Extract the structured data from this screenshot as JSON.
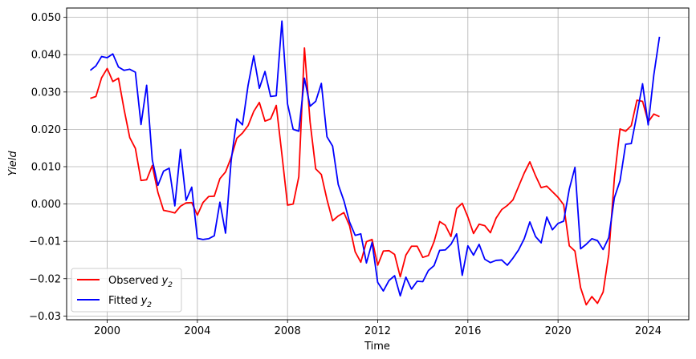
{
  "chart_data": {
    "type": "line",
    "xlabel": "Time",
    "ylabel": "Yield",
    "xlim": [
      1998.2,
      2025.8
    ],
    "ylim": [
      -0.031,
      0.0525
    ],
    "grid": true,
    "legend_position": "lower-left",
    "xticks": [
      2000,
      2004,
      2008,
      2012,
      2016,
      2020,
      2024
    ],
    "xtick_labels": [
      "2000",
      "2004",
      "2008",
      "2012",
      "2016",
      "2020",
      "2024"
    ],
    "yticks": [
      -0.03,
      -0.02,
      -0.01,
      0.0,
      0.01,
      0.02,
      0.03,
      0.04,
      0.05
    ],
    "ytick_labels": [
      "−0.03",
      "−0.02",
      "−0.01",
      "0.000",
      "0.010",
      "0.020",
      "0.030",
      "0.040",
      "0.050"
    ],
    "series": [
      {
        "name": "Observed y2",
        "legend_label": "Observed",
        "legend_subscript": "2",
        "color": "#ff0000",
        "x": [
          1999.25,
          1999.5,
          1999.75,
          2000.0,
          2000.25,
          2000.5,
          2000.75,
          2001.0,
          2001.25,
          2001.5,
          2001.75,
          2002.0,
          2002.25,
          2002.5,
          2002.75,
          2003.0,
          2003.25,
          2003.5,
          2003.75,
          2004.0,
          2004.25,
          2004.5,
          2004.75,
          2005.0,
          2005.25,
          2005.5,
          2005.75,
          2006.0,
          2006.25,
          2006.5,
          2006.75,
          2007.0,
          2007.25,
          2007.5,
          2007.75,
          2008.0,
          2008.25,
          2008.5,
          2008.75,
          2009.0,
          2009.25,
          2009.5,
          2009.75,
          2010.0,
          2010.25,
          2010.5,
          2010.75,
          2011.0,
          2011.25,
          2011.5,
          2011.75,
          2012.0,
          2012.25,
          2012.5,
          2012.75,
          2013.0,
          2013.25,
          2013.5,
          2013.75,
          2014.0,
          2014.25,
          2014.5,
          2014.75,
          2015.0,
          2015.25,
          2015.5,
          2015.75,
          2016.0,
          2016.25,
          2016.5,
          2016.75,
          2017.0,
          2017.25,
          2017.5,
          2017.75,
          2018.0,
          2018.25,
          2018.5,
          2018.75,
          2019.0,
          2019.25,
          2019.5,
          2019.75,
          2020.0,
          2020.25,
          2020.5,
          2020.75,
          2021.0,
          2021.25,
          2021.5,
          2021.75,
          2022.0,
          2022.25,
          2022.5,
          2022.75,
          2023.0,
          2023.25,
          2023.5,
          2023.75,
          2024.0,
          2024.25,
          2024.5
        ],
        "y": [
          0.0283,
          0.0288,
          0.0338,
          0.0363,
          0.0328,
          0.0337,
          0.0253,
          0.0178,
          0.0149,
          0.0063,
          0.0065,
          0.0103,
          0.0031,
          -0.0017,
          -0.002,
          -0.0024,
          -0.0006,
          0.0003,
          0.0004,
          -0.003,
          0.0004,
          0.002,
          0.0021,
          0.0068,
          0.0086,
          0.0125,
          0.0176,
          0.019,
          0.021,
          0.0248,
          0.0272,
          0.0222,
          0.0228,
          0.0264,
          0.0133,
          -0.0003,
          0.0,
          0.0073,
          0.0418,
          0.022,
          0.0094,
          0.0079,
          0.0012,
          -0.0045,
          -0.0032,
          -0.0023,
          -0.0058,
          -0.0128,
          -0.0156,
          -0.0101,
          -0.0095,
          -0.0164,
          -0.0126,
          -0.0125,
          -0.0135,
          -0.0195,
          -0.0137,
          -0.0113,
          -0.0113,
          -0.0143,
          -0.0138,
          -0.0101,
          -0.0047,
          -0.0057,
          -0.0087,
          -0.0012,
          0.0002,
          -0.0035,
          -0.0079,
          -0.0054,
          -0.0058,
          -0.0077,
          -0.0038,
          -0.0015,
          -0.0004,
          0.0011,
          0.0047,
          0.0083,
          0.0113,
          0.0076,
          0.0044,
          0.0048,
          0.0033,
          0.0018,
          -0.0002,
          -0.0112,
          -0.0126,
          -0.0224,
          -0.027,
          -0.0248,
          -0.0266,
          -0.0236,
          -0.0135,
          0.007,
          0.0201,
          0.0195,
          0.021,
          0.0278,
          0.0275,
          0.022,
          0.0241,
          0.0234
        ]
      },
      {
        "name": "Fitted y2",
        "legend_label": "Fitted",
        "legend_subscript": "2",
        "color": "#0000ff",
        "x": [
          1999.25,
          1999.5,
          1999.75,
          2000.0,
          2000.25,
          2000.5,
          2000.75,
          2001.0,
          2001.25,
          2001.5,
          2001.75,
          2002.0,
          2002.25,
          2002.5,
          2002.75,
          2003.0,
          2003.25,
          2003.5,
          2003.75,
          2004.0,
          2004.25,
          2004.5,
          2004.75,
          2005.0,
          2005.25,
          2005.5,
          2005.75,
          2006.0,
          2006.25,
          2006.5,
          2006.75,
          2007.0,
          2007.25,
          2007.5,
          2007.75,
          2008.0,
          2008.25,
          2008.5,
          2008.75,
          2009.0,
          2009.25,
          2009.5,
          2009.75,
          2010.0,
          2010.25,
          2010.5,
          2010.75,
          2011.0,
          2011.25,
          2011.5,
          2011.75,
          2012.0,
          2012.25,
          2012.5,
          2012.75,
          2013.0,
          2013.25,
          2013.5,
          2013.75,
          2014.0,
          2014.25,
          2014.5,
          2014.75,
          2015.0,
          2015.25,
          2015.5,
          2015.75,
          2016.0,
          2016.25,
          2016.5,
          2016.75,
          2017.0,
          2017.25,
          2017.5,
          2017.75,
          2018.0,
          2018.25,
          2018.5,
          2018.75,
          2019.0,
          2019.25,
          2019.5,
          2019.75,
          2020.0,
          2020.25,
          2020.5,
          2020.75,
          2021.0,
          2021.25,
          2021.5,
          2021.75,
          2022.0,
          2022.25,
          2022.5,
          2022.75,
          2023.0,
          2023.25,
          2023.5,
          2023.75,
          2024.0,
          2024.25,
          2024.5
        ],
        "y": [
          0.0358,
          0.037,
          0.0395,
          0.0392,
          0.0402,
          0.0367,
          0.0358,
          0.0361,
          0.0353,
          0.0213,
          0.0318,
          0.0118,
          0.005,
          0.0088,
          0.0096,
          -0.0005,
          0.0146,
          0.001,
          0.0045,
          -0.0092,
          -0.0095,
          -0.0093,
          -0.0085,
          0.0005,
          -0.0078,
          0.0117,
          0.0228,
          0.0212,
          0.0318,
          0.0397,
          0.031,
          0.0355,
          0.0288,
          0.029,
          0.049,
          0.0268,
          0.02,
          0.0195,
          0.0337,
          0.0262,
          0.0275,
          0.0323,
          0.018,
          0.0155,
          0.0052,
          0.0009,
          -0.0048,
          -0.0084,
          -0.008,
          -0.0158,
          -0.0103,
          -0.021,
          -0.0233,
          -0.0205,
          -0.0192,
          -0.0246,
          -0.0196,
          -0.0228,
          -0.0207,
          -0.0208,
          -0.0178,
          -0.0165,
          -0.0124,
          -0.0123,
          -0.0108,
          -0.008,
          -0.0191,
          -0.0112,
          -0.0137,
          -0.0108,
          -0.0148,
          -0.0157,
          -0.0151,
          -0.015,
          -0.0164,
          -0.0145,
          -0.0123,
          -0.0093,
          -0.0048,
          -0.0087,
          -0.0104,
          -0.0035,
          -0.0069,
          -0.0052,
          -0.0046,
          0.004,
          0.0098,
          -0.012,
          -0.0108,
          -0.0093,
          -0.0098,
          -0.0122,
          -0.009,
          0.0017,
          0.0062,
          0.016,
          0.0162,
          0.024,
          0.0322,
          0.0212,
          0.0346,
          0.0448
        ]
      }
    ]
  }
}
